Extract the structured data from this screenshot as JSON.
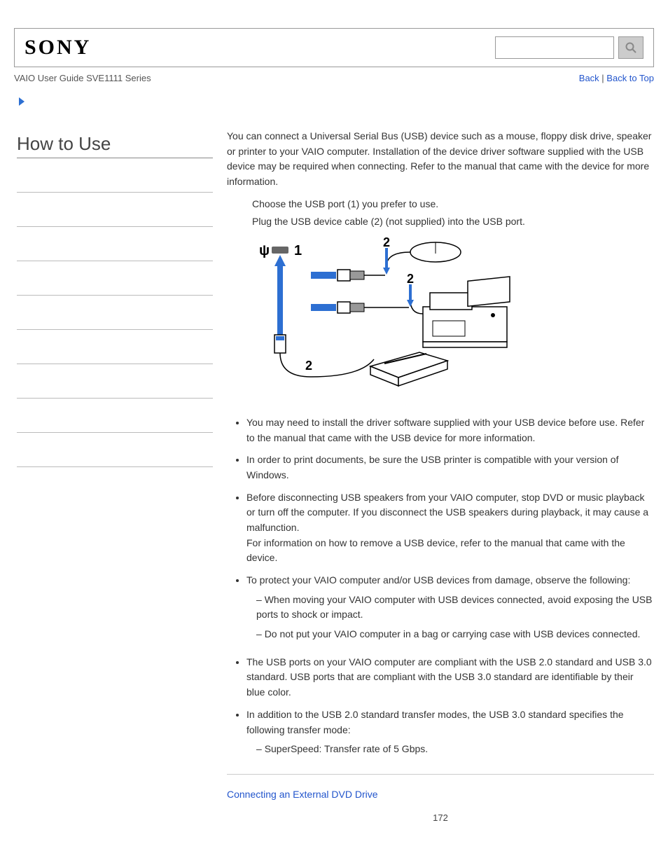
{
  "header": {
    "logo_text": "SONY",
    "breadcrumb": "VAIO User Guide SVE1111 Series",
    "back_label": "Back",
    "separator": " | ",
    "back_to_top_label": "Back to Top"
  },
  "sidebar": {
    "title": "How to Use",
    "empty_rows": 9
  },
  "content": {
    "intro": "You can connect a Universal Serial Bus (USB) device such as a mouse, floppy disk drive, speaker or printer to your VAIO computer. Installation of the device driver software supplied with the USB device may be required when connecting. Refer to the manual that came with the device for more information.",
    "step1": "Choose the USB port (1) you prefer to use.",
    "step2": "Plug the USB device cable (2) (not supplied) into the USB port.",
    "diagram": {
      "labels": {
        "port": "1",
        "cable_a": "2",
        "cable_b": "2",
        "cable_c": "2"
      },
      "colors": {
        "arrow": "#2d6fd2",
        "line": "#000000",
        "usb_body": "#ffffff",
        "usb_blue": "#2d6fd2"
      }
    },
    "notes_block1": [
      {
        "text": "You may need to install the driver software supplied with your USB device before use. Refer to the manual that came with the USB device for more information."
      },
      {
        "text": "In order to print documents, be sure the USB printer is compatible with your version of Windows."
      },
      {
        "text": "Before disconnecting USB speakers from your VAIO computer, stop DVD or music playback or turn off the computer. If you disconnect the USB speakers during playback, it may cause a malfunction.",
        "text2": "For information on how to remove a USB device, refer to the manual that came with the device."
      },
      {
        "text": "To protect your VAIO computer and/or USB devices from damage, observe the following:",
        "sub": [
          "When moving your VAIO computer with USB devices connected, avoid exposing the USB ports to shock or impact.",
          "Do not put your VAIO computer in a bag or carrying case with USB devices connected."
        ]
      }
    ],
    "notes_block2": [
      {
        "text": "The USB ports on your VAIO computer are compliant with the USB 2.0 standard and USB 3.0 standard. USB ports that are compliant with the USB 3.0 standard are identifiable by their blue color."
      },
      {
        "text": "In addition to the USB 2.0 standard transfer modes, the USB 3.0 standard specifies the following transfer mode:",
        "sub": [
          "SuperSpeed: Transfer rate of 5 Gbps."
        ]
      }
    ],
    "related_link": "Connecting an External DVD Drive",
    "page_number": "172"
  },
  "colors": {
    "link": "#2255cc",
    "border": "#999999",
    "text": "#333333"
  }
}
